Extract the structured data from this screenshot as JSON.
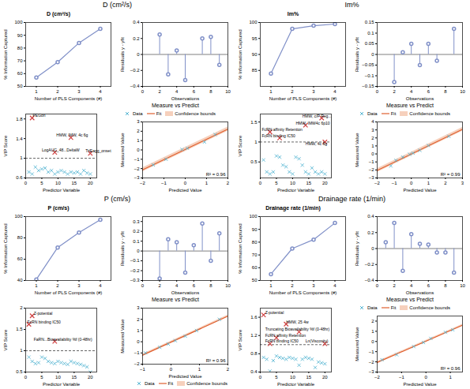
{
  "chart_data": [
    {
      "type": "line",
      "title": "D (cm²/s)",
      "xlabel": "Number of PLS Components (#)",
      "ylabel": "% Information Captured",
      "x": [
        1,
        2,
        3,
        4
      ],
      "values": [
        57,
        69,
        84,
        95
      ],
      "color": "#8090C8",
      "marker": "circle",
      "xlim": [
        0.5,
        4.5
      ],
      "xticks": [
        1,
        2,
        3,
        4
      ],
      "ylim": [
        50,
        100
      ],
      "yticks": [
        50,
        60,
        70,
        80,
        90,
        100
      ]
    },
    {
      "type": "stem",
      "xlabel": "Observations",
      "ylabel": "Residuals y - yfit",
      "x": [
        2,
        3,
        4,
        5,
        7,
        8,
        9
      ],
      "values": [
        0.25,
        -0.25,
        0.05,
        -0.32,
        0.2,
        0.22,
        -0.13
      ],
      "color": "#8090C8",
      "hline": 0,
      "xlim": [
        0,
        10
      ],
      "xticks": [
        0,
        2,
        4,
        6,
        8,
        10
      ],
      "ylim": [
        -0.4,
        0.4
      ],
      "yticks": [
        -0.4,
        -0.2,
        0,
        0.2,
        0.4
      ]
    },
    {
      "type": "scatter",
      "xlabel": "Predictor Variable",
      "ylabel": "VIP Score",
      "series": [
        {
          "color": "#5BB8D4",
          "marker": "x",
          "x": [
            1,
            2,
            3,
            4,
            5,
            6,
            7,
            8,
            9,
            10,
            11,
            12,
            13,
            14,
            15,
            16,
            17,
            18,
            19,
            20
          ],
          "values": [
            0.72,
            0.68,
            0.82,
            0.75,
            0.78,
            0.8,
            0.72,
            0.75,
            0.68,
            0.72,
            0.75,
            0.72,
            0.68,
            0.72,
            0.7,
            0.72,
            0.68,
            0.75,
            0.7,
            0.68
          ]
        },
        {
          "color": "#D04040",
          "marker": "x",
          "x": [
            2,
            14,
            20
          ],
          "values": [
            1.82,
            1.42,
            1.1
          ]
        },
        {
          "color": "#D04040",
          "marker": "x",
          "x": [
            9
          ],
          "values": [
            1.12
          ]
        }
      ],
      "annotations": [
        {
          "x": 2.2,
          "y": 1.84,
          "text": "PEGon"
        },
        {
          "x": 9.5,
          "y": 1.44,
          "text": "HMW, IMW, 4c 6g"
        },
        {
          "x": 18.5,
          "y": 1.12,
          "text": "TriEagg_onset"
        },
        {
          "x": 5,
          "y": 1.14,
          "text": "LogAUC_48...DeltaW"
        }
      ],
      "hline": 1.0,
      "line_style": "dashed",
      "xlim": [
        0,
        22
      ],
      "xticks": [
        0,
        5,
        10,
        15,
        20
      ],
      "ylim": [
        0.6,
        1.9
      ],
      "yticks": [
        0.6,
        1.0,
        1.4,
        1.8
      ]
    },
    {
      "type": "scatter",
      "title": "Measure vs Predict",
      "xlabel": "Predicted Value",
      "ylabel": "Measured Value",
      "series": [
        {
          "name": "Data",
          "type": "scatter",
          "marker": "x",
          "color": "#5BB8D4",
          "x": [
            -1.5,
            -0.9,
            -0.15,
            0.1,
            0.9,
            1.4
          ],
          "values": [
            -1.6,
            -1.0,
            0.05,
            0.18,
            0.85,
            1.65
          ]
        },
        {
          "name": "Fit",
          "type": "line",
          "color": "#E06030",
          "x": [
            -2,
            2
          ],
          "values": [
            -2.132,
            2.2299
          ]
        },
        {
          "name": "Confidence bounds",
          "type": "area",
          "color": "#F0B090",
          "x": [
            -2,
            2
          ],
          "lower": [
            -2.3486,
            2.0132
          ],
          "upper": [
            -1.9154,
            2.4465
          ]
        }
      ],
      "annotations": [
        {
          "text": "R² = 0.96"
        }
      ],
      "legend": "upper left",
      "xlim": [
        -2,
        2
      ],
      "xticks": [
        -2,
        -1,
        0,
        1,
        2
      ],
      "ylim": [
        -3,
        3
      ],
      "yticks": [
        -3,
        -2,
        -1,
        0,
        1,
        2,
        3
      ]
    },
    {
      "type": "line",
      "title": "Im%",
      "xlabel": "Number of PLS Components (#)",
      "ylabel": "% Information Captured",
      "x": [
        1,
        2,
        3,
        4
      ],
      "values": [
        84,
        98,
        99,
        99.5
      ],
      "color": "#8090C8",
      "marker": "circle",
      "xlim": [
        0.5,
        4.5
      ],
      "xticks": [
        1,
        2,
        3,
        4
      ],
      "ylim": [
        80,
        100
      ],
      "yticks": [
        85,
        90,
        95,
        100
      ]
    },
    {
      "type": "stem",
      "xlabel": "Observations",
      "ylabel": "Residuals y - yfit",
      "x": [
        2,
        3,
        4,
        5,
        6,
        7,
        9
      ],
      "values": [
        -0.13,
        0.01,
        0.05,
        -0.05,
        0.05,
        -0.03,
        0.12
      ],
      "color": "#8090C8",
      "hline": 0,
      "xlim": [
        0,
        10
      ],
      "xticks": [
        0,
        2,
        4,
        6,
        8,
        10
      ],
      "ylim": [
        -0.15,
        0.15
      ],
      "yticks": [
        -0.15,
        -0.1,
        -0.05,
        0,
        0.05,
        0.1,
        0.15
      ]
    },
    {
      "type": "scatter",
      "xlabel": "Predictor Variable",
      "ylabel": "VIP Score",
      "series": [
        {
          "color": "#5BB8D4",
          "marker": "x",
          "x": [
            1,
            2,
            3,
            4,
            5,
            6,
            7,
            8,
            9,
            10,
            11,
            12,
            13,
            14,
            15,
            16,
            17,
            18,
            19,
            20
          ],
          "values": [
            0.55,
            0.25,
            0.2,
            0.25,
            0.65,
            0.62,
            0.42,
            0.38,
            0.25,
            0.2,
            0.62,
            0.58,
            0.42,
            0.25,
            0.2,
            0.35,
            0.25,
            0.2,
            0.25,
            0.2
          ]
        },
        {
          "color": "#D04040",
          "marker": "x",
          "x": [
            19,
            14,
            3,
            6,
            20
          ],
          "values": [
            1.6,
            1.42,
            1.25,
            1.1,
            1.0
          ]
        }
      ],
      "annotations": [
        {
          "x": 13,
          "y": 1.62,
          "text": "HMW, c/P Reg..."
        },
        {
          "x": 11,
          "y": 1.44,
          "text": "HMW, IMW4c 6p10"
        },
        {
          "x": 0.5,
          "y": 1.27,
          "text": "FcRN affinity Retention"
        },
        {
          "x": 0.5,
          "y": 1.12,
          "text": "FcRN binding IC50"
        },
        {
          "x": 14,
          "y": 0.92,
          "text": "HMW, 4c 6g"
        }
      ],
      "hline": 1.0,
      "line_style": "dashed",
      "xlim": [
        0,
        22
      ],
      "xticks": [
        0,
        5,
        10,
        15,
        20
      ],
      "ylim": [
        0.1,
        1.7
      ],
      "yticks": [
        0.5,
        1.0,
        1.5
      ]
    },
    {
      "type": "scatter",
      "title": "Measure vs Predict",
      "xlabel": "Predicted Value",
      "ylabel": "Measured Value",
      "series": [
        {
          "name": "Data",
          "type": "scatter",
          "marker": "x",
          "color": "#5BB8D4",
          "x": [
            -1.2,
            -0.9,
            -0.5,
            -0.1,
            0.1,
            0.5,
            1.0,
            2.2
          ],
          "values": [
            -1.5,
            -0.8,
            -0.4,
            -0.05,
            0.1,
            0.45,
            1.05,
            2.2
          ]
        },
        {
          "name": "Fit",
          "type": "line",
          "color": "#E06030",
          "x": [
            -2,
            3
          ],
          "values": [
            -2.0686,
            3.0773
          ]
        },
        {
          "name": "Confidence bounds",
          "type": "area",
          "color": "#F0B090",
          "x": [
            -2,
            3
          ],
          "lower": [
            -2.3031,
            2.8428
          ],
          "upper": [
            -1.8341,
            3.3118
          ]
        }
      ],
      "annotations": [
        {
          "text": "R² = 0.99"
        }
      ],
      "legend": "upper left",
      "xlim": [
        -2,
        3
      ],
      "xticks": [
        -2,
        -1,
        0,
        1,
        2,
        3
      ],
      "ylim": [
        -3,
        4
      ],
      "yticks": [
        -3,
        -2,
        -1,
        0,
        1,
        2,
        3,
        4
      ]
    },
    {
      "type": "line",
      "title": "P (cm/s)",
      "xlabel": "Number of PLS Components (#)",
      "ylabel": "% Information Captured",
      "x": [
        1,
        2,
        3,
        4
      ],
      "values": [
        41,
        71,
        85,
        97
      ],
      "color": "#8090C8",
      "marker": "circle",
      "xlim": [
        0.5,
        4.5
      ],
      "xticks": [
        1,
        2,
        3,
        4
      ],
      "ylim": [
        40,
        100
      ],
      "yticks": [
        40,
        60,
        80,
        100
      ]
    },
    {
      "type": "stem",
      "xlabel": "Observations",
      "ylabel": "Residuals y - yfit",
      "x": [
        2,
        3,
        4,
        5,
        6,
        7,
        8,
        9
      ],
      "values": [
        -0.28,
        0.12,
        0.09,
        -0.22,
        0.06,
        0.28,
        -0.1,
        0.18
      ],
      "color": "#8090C8",
      "hline": 0,
      "xlim": [
        0,
        10
      ],
      "xticks": [
        0,
        2,
        4,
        6,
        8,
        10
      ],
      "ylim": [
        -0.3,
        0.35
      ],
      "yticks": [
        -0.3,
        -0.2,
        -0.1,
        0,
        0.1,
        0.2,
        0.3
      ]
    },
    {
      "type": "scatter",
      "xlabel": "Predictor Variable",
      "ylabel": "VIP Score",
      "series": [
        {
          "color": "#5BB8D4",
          "marker": "x",
          "x": [
            1,
            2,
            3,
            4,
            5,
            6,
            7,
            8,
            9,
            10,
            11,
            12,
            13,
            14,
            15,
            16,
            17,
            18,
            19,
            20
          ],
          "values": [
            0.85,
            0.75,
            0.7,
            0.72,
            0.85,
            0.82,
            0.75,
            0.72,
            0.7,
            0.75,
            0.72,
            0.7,
            0.68,
            0.75,
            0.72,
            0.7,
            0.68,
            0.65,
            0.62,
            0.5
          ]
        },
        {
          "color": "#D04040",
          "marker": "x",
          "x": [
            2,
            9
          ],
          "values": [
            1.82,
            1.22
          ]
        },
        {
          "color": "#D04040",
          "marker": "x",
          "x": [
            1
          ],
          "values": [
            1.62
          ]
        }
      ],
      "annotations": [
        {
          "x": 2.5,
          "y": 1.84,
          "text": "Z-potential"
        },
        {
          "x": 2.5,
          "y": 1.24,
          "text": "FaRN...Bioavailability %f (0-48hr)"
        },
        {
          "x": 0.5,
          "y": 1.64,
          "text": "FcRN binding IC50"
        }
      ],
      "hline": 1.0,
      "line_style": "dashed",
      "xlim": [
        0,
        22
      ],
      "xticks": [
        0,
        5,
        10,
        15,
        20
      ],
      "ylim": [
        0.5,
        2.0
      ],
      "yticks": [
        0.5,
        1.0,
        1.5,
        2.0
      ]
    },
    {
      "type": "scatter",
      "title": "Measure vs Predict",
      "xlabel": "Predicted Value",
      "ylabel": "Measured Value",
      "series": [
        {
          "name": "Data",
          "type": "scatter",
          "marker": "x",
          "color": "#5BB8D4",
          "x": [
            -0.9,
            -0.4,
            -0.1,
            0.15,
            0.5,
            0.9,
            1.7
          ],
          "values": [
            -1.0,
            -0.5,
            -0.2,
            0.1,
            0.5,
            1.0,
            2.0
          ]
        },
        {
          "name": "Fit",
          "type": "line",
          "color": "#E06030",
          "x": [
            -1,
            2
          ],
          "values": [
            -1.1966,
            2.2868
          ]
        },
        {
          "name": "Confidence bounds",
          "type": "area",
          "color": "#F0B090",
          "x": [
            -1,
            2
          ],
          "lower": [
            -1.2929,
            2.1905
          ],
          "upper": [
            -1.1003,
            2.3832
          ]
        }
      ],
      "annotations": [
        {
          "text": "R² = 0.96"
        }
      ],
      "legend": "lower right",
      "xlim": [
        -1,
        2
      ],
      "xticks": [
        -1,
        0,
        1,
        2
      ],
      "ylim": [
        -2,
        3
      ],
      "yticks": [
        -2,
        -1,
        0,
        1,
        2,
        3
      ]
    },
    {
      "type": "line",
      "title": "Drainage rate (1/min)",
      "xlabel": "Number of PLS Components (#)",
      "ylabel": "% Information Captured",
      "x": [
        1,
        2,
        3,
        4
      ],
      "values": [
        55,
        75,
        82,
        95
      ],
      "color": "#8090C8",
      "marker": "circle",
      "xlim": [
        0.5,
        4.5
      ],
      "xticks": [
        1,
        2,
        3,
        4
      ],
      "ylim": [
        50,
        100
      ],
      "yticks": [
        50,
        60,
        70,
        80,
        90,
        100
      ]
    },
    {
      "type": "stem",
      "xlabel": "Observations",
      "ylabel": "Residuals y - yfit",
      "x": [
        1,
        2,
        3,
        4,
        5,
        6,
        7,
        8,
        9
      ],
      "values": [
        0.08,
        0.32,
        -0.28,
        0.18,
        0.06,
        0.05,
        -0.05,
        -0.05,
        -0.3
      ],
      "color": "#8090C8",
      "hline": 0,
      "xlim": [
        0,
        10
      ],
      "xticks": [
        0,
        2,
        4,
        6,
        8,
        10
      ],
      "ylim": [
        -0.4,
        0.4
      ],
      "yticks": [
        -0.4,
        -0.2,
        0,
        0.2,
        0.4
      ]
    },
    {
      "type": "scatter",
      "xlabel": "Predictor Variable",
      "ylabel": "VIP Score",
      "series": [
        {
          "color": "#5BB8D4",
          "marker": "x",
          "x": [
            1,
            2,
            3,
            4,
            5,
            6,
            7,
            8,
            9,
            10,
            11,
            12,
            13,
            14,
            15,
            16,
            17,
            18,
            19,
            20
          ],
          "values": [
            0.72,
            0.68,
            0.42,
            0.65,
            0.75,
            0.72,
            0.7,
            0.68,
            0.72,
            0.7,
            0.68,
            0.55,
            0.68,
            0.72,
            0.7,
            0.68,
            0.5,
            0.62,
            0.6,
            0.58
          ]
        },
        {
          "color": "#D04040",
          "marker": "x",
          "x": [
            1,
            8,
            12,
            5,
            3
          ],
          "values": [
            1.65,
            1.45,
            1.28,
            1.15,
            1.02
          ]
        },
        {
          "color": "#D04040",
          "marker": "x",
          "x": [
            20
          ],
          "values": [
            1.02
          ]
        }
      ],
      "annotations": [
        {
          "x": 1.5,
          "y": 1.67,
          "text": "Z-potential"
        },
        {
          "x": 8,
          "y": 1.47,
          "text": "HMW, 25 4w"
        },
        {
          "x": 1.5,
          "y": 1.3,
          "text": "Truncating Bioavailability %f (0-48hr)"
        },
        {
          "x": 1.5,
          "y": 1.17,
          "text": "FcRN affinity Retention"
        },
        {
          "x": 1.5,
          "y": 1.04,
          "text": "FcRN binding IC50"
        },
        {
          "x": 14,
          "y": 1.04,
          "text": "Ln(Viscosity)"
        }
      ],
      "hline": 1.0,
      "line_style": "dashed",
      "xlim": [
        0,
        22
      ],
      "xticks": [
        0,
        5,
        10,
        15,
        20
      ],
      "ylim": [
        0.4,
        1.8
      ],
      "yticks": [
        0.4,
        0.8,
        1.2,
        1.6
      ]
    },
    {
      "type": "scatter",
      "title": "Measure vs Predict",
      "xlabel": "Predicted Value",
      "ylabel": "Measured Value",
      "series": [
        {
          "name": "Data",
          "type": "scatter",
          "marker": "x",
          "color": "#5BB8D4",
          "x": [
            -1.8,
            -1.2,
            -0.5,
            -0.1,
            0.2,
            0.8,
            1.1
          ],
          "values": [
            -1.8,
            -1.3,
            -0.5,
            -0.1,
            0.3,
            0.9,
            1.15
          ]
        },
        {
          "name": "Fit",
          "type": "line",
          "color": "#E06030",
          "x": [
            -2,
            1.5
          ],
          "values": [
            -2.0628,
            1.6023
          ]
        },
        {
          "name": "Confidence bounds",
          "type": "area",
          "color": "#F0B090",
          "x": [
            -2,
            1.5
          ],
          "lower": [
            -2.1548,
            1.5104
          ],
          "upper": [
            -1.9709,
            1.6943
          ]
        }
      ],
      "annotations": [
        {
          "text": "R² = 0.96"
        }
      ],
      "legend": "upper left",
      "xlim": [
        -2,
        1.5
      ],
      "xticks": [
        -2,
        -1,
        0,
        1
      ],
      "ylim": [
        -3,
        2.5
      ],
      "yticks": [
        -3,
        -2,
        -1,
        0,
        1,
        2
      ]
    }
  ],
  "titles": [
    "D (cm²/s)",
    "Im%",
    "P (cm/s)",
    "Drainage rate (1/min)"
  ]
}
